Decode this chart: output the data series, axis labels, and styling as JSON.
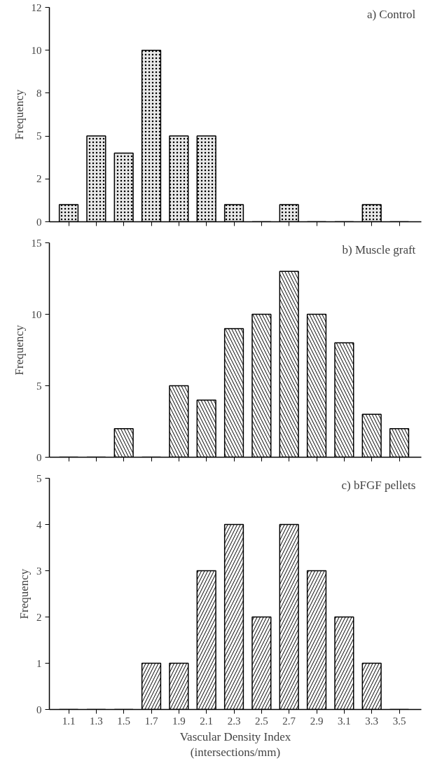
{
  "chart_data": [
    {
      "type": "bar",
      "title": "a)  Control",
      "ylabel": "Frequency",
      "categories": [
        "1.1",
        "1.3",
        "1.5",
        "1.7",
        "1.9",
        "2.1",
        "2.3",
        "2.5",
        "2.7",
        "2.9",
        "3.1",
        "3.3",
        "3.5"
      ],
      "values": [
        1,
        5,
        4,
        10,
        5,
        5,
        1,
        0,
        1,
        0,
        0,
        1,
        0
      ],
      "color": "#e8e8e8",
      "ylim": [
        0,
        12.5
      ],
      "yticks": [
        0,
        {
          "value": 2.5,
          "label": "2"
        },
        5,
        {
          "value": 7.5,
          "label": "8"
        },
        10,
        {
          "value": 12.5,
          "label": "12"
        }
      ],
      "tick_labels": "y",
      "grid": false,
      "legend": false
    },
    {
      "type": "bar",
      "title": "b)  Muscle graft",
      "ylabel": "Frequency",
      "categories": [
        "1.1",
        "1.3",
        "1.5",
        "1.7",
        "1.9",
        "2.1",
        "2.3",
        "2.5",
        "2.7",
        "2.9",
        "3.1",
        "3.3",
        "3.5"
      ],
      "values": [
        0,
        0,
        2,
        0,
        5,
        4,
        9,
        10,
        13,
        10,
        8,
        3,
        2
      ],
      "color": "#ffffff",
      "ylim": [
        0,
        15
      ],
      "yticks": [
        0,
        5,
        10,
        15
      ],
      "tick_labels": "y",
      "grid": false,
      "legend": false
    },
    {
      "type": "bar",
      "title": "c)  bFGF pellets",
      "ylabel": "Frequency",
      "xlabel": "Vascular Density Index\n(intersections/mm)",
      "categories": [
        "1.1",
        "1.3",
        "1.5",
        "1.7",
        "1.9",
        "2.1",
        "2.3",
        "2.5",
        "2.7",
        "2.9",
        "3.1",
        "3.3",
        "3.5"
      ],
      "values": [
        0,
        0,
        0,
        1,
        1,
        3,
        4,
        2,
        4,
        3,
        2,
        1,
        0
      ],
      "color": "#ffffff",
      "ylim": [
        0,
        5
      ],
      "yticks": [
        0,
        1,
        2,
        3,
        4,
        5
      ],
      "grid": false,
      "legend": false
    }
  ]
}
